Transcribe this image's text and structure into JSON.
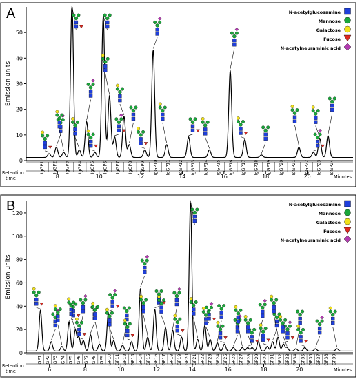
{
  "chart_data": [
    {
      "type": "line",
      "panel": "A",
      "ylabel": "Emission units",
      "xlabel": "Minutes",
      "retention_label": [
        "Retention",
        "time"
      ],
      "ylim": [
        0,
        60
      ],
      "xlim": [
        6.5,
        22.2
      ],
      "yticks": [
        0,
        10,
        20,
        30,
        40,
        50
      ],
      "xticks": [
        8,
        10,
        12,
        14,
        16,
        18,
        20
      ],
      "legend": [
        "N-acetylglucosamine",
        "Mannose",
        "Galactose",
        "Fucose",
        "N-acetylneuraminic acid"
      ],
      "legend_position": "top-right",
      "colors": {
        "N-acetylglucosamine": "#1f3fdc",
        "Mannose": "#1aa63a",
        "Galactose": "#f2e21a",
        "Fucose": "#e0281f",
        "N-acetylneuraminic acid": "#b33bb0"
      },
      "peak_labels": [
        "IgGP1",
        "IgGP2",
        "IgGP3",
        "IgGP4",
        "IgGP5",
        "IgGP6",
        "IgGP7",
        "IgGP8",
        "IgGP9",
        "IgGP10",
        "IgGP11",
        "IgGP12",
        "IgGP13",
        "IgGP14",
        "IgGP15",
        "IgGP16",
        "IgGP17",
        "IgGP18",
        "IgGP19",
        "IgGP20",
        "IgGP21",
        "IgGP22",
        "IgGP23",
        "IgGP24"
      ],
      "peaks": [
        {
          "x": 7.6,
          "y": 1.5
        },
        {
          "x": 7.95,
          "y": 4
        },
        {
          "x": 8.3,
          "y": 2
        },
        {
          "x": 8.7,
          "y": 60
        },
        {
          "x": 9.05,
          "y": 3
        },
        {
          "x": 9.4,
          "y": 14
        },
        {
          "x": 9.8,
          "y": 2
        },
        {
          "x": 10.2,
          "y": 55
        },
        {
          "x": 10.5,
          "y": 24
        },
        {
          "x": 10.75,
          "y": 8
        },
        {
          "x": 11.2,
          "y": 16
        },
        {
          "x": 11.45,
          "y": 5
        },
        {
          "x": 12.2,
          "y": 3
        },
        {
          "x": 12.6,
          "y": 42
        },
        {
          "x": 13.25,
          "y": 5
        },
        {
          "x": 14.3,
          "y": 8
        },
        {
          "x": 15.3,
          "y": 3
        },
        {
          "x": 16.3,
          "y": 34
        },
        {
          "x": 17.0,
          "y": 7
        },
        {
          "x": 17.8,
          "y": 1
        },
        {
          "x": 19.6,
          "y": 4
        },
        {
          "x": 20.3,
          "y": 2
        },
        {
          "x": 20.6,
          "y": 7.5
        },
        {
          "x": 21.0,
          "y": 8.5
        }
      ]
    },
    {
      "type": "line",
      "panel": "B",
      "ylabel": "Emission units",
      "xlabel": "Minutes",
      "retention_label": [
        "Retention",
        "time"
      ],
      "ylim": [
        0,
        130
      ],
      "xlim": [
        4.7,
        23.0
      ],
      "yticks": [
        0,
        20,
        40,
        60,
        80,
        100,
        120
      ],
      "xticks": [
        6,
        8,
        10,
        12,
        14,
        16,
        18,
        20
      ],
      "legend": [
        "N-acetylglucosamine",
        "Mannose",
        "Galactose",
        "Fucose",
        "N-acetylneuraminic acid"
      ],
      "legend_position": "top-right",
      "colors": {
        "N-acetylglucosamine": "#1f3fdc",
        "Mannose": "#1aa63a",
        "Galactose": "#f2e21a",
        "Fucose": "#e0281f",
        "N-acetylneuraminic acid": "#b33bb0"
      },
      "peak_labels": [
        "GP1",
        "GP2",
        "GP3",
        "GP4",
        "GP5",
        "GP6",
        "GP7",
        "GP8",
        "GP9",
        "GP10",
        "GP11",
        "GP12",
        "GP13",
        "GP14",
        "GP15",
        "GP16",
        "GP17",
        "GP18",
        "GP19",
        "GP20",
        "GP21",
        "GP22",
        "GP23",
        "GP24",
        "GP25",
        "GP26",
        "GP27",
        "GP28",
        "GP29",
        "GP30",
        "GP31",
        "GP32",
        "GP33",
        "GP34",
        "GP35",
        "GP36",
        "GP37",
        "GP38",
        "GP39"
      ],
      "peaks": [
        {
          "x": 5.5,
          "y": 35
        },
        {
          "x": 6.1,
          "y": 8
        },
        {
          "x": 6.7,
          "y": 4
        },
        {
          "x": 7.1,
          "y": 25
        },
        {
          "x": 7.45,
          "y": 18
        },
        {
          "x": 7.65,
          "y": 12
        },
        {
          "x": 7.9,
          "y": 9
        },
        {
          "x": 8.3,
          "y": 14
        },
        {
          "x": 8.8,
          "y": 6
        },
        {
          "x": 9.3,
          "y": 33
        },
        {
          "x": 9.6,
          "y": 9
        },
        {
          "x": 10.1,
          "y": 5
        },
        {
          "x": 10.6,
          "y": 8
        },
        {
          "x": 11.1,
          "y": 54
        },
        {
          "x": 11.5,
          "y": 12
        },
        {
          "x": 11.9,
          "y": 36
        },
        {
          "x": 12.5,
          "y": 20
        },
        {
          "x": 12.9,
          "y": 18
        },
        {
          "x": 13.4,
          "y": 12
        },
        {
          "x": 13.9,
          "y": 128
        },
        {
          "x": 14.3,
          "y": 10
        },
        {
          "x": 14.7,
          "y": 22
        },
        {
          "x": 15.0,
          "y": 10
        },
        {
          "x": 15.4,
          "y": 7
        },
        {
          "x": 15.8,
          "y": 6
        },
        {
          "x": 16.3,
          "y": 3
        },
        {
          "x": 16.8,
          "y": 3
        },
        {
          "x": 17.1,
          "y": 3
        },
        {
          "x": 17.35,
          "y": 3
        },
        {
          "x": 17.7,
          "y": 8
        },
        {
          "x": 18.2,
          "y": 4
        },
        {
          "x": 18.5,
          "y": 8
        },
        {
          "x": 18.8,
          "y": 12
        },
        {
          "x": 19.1,
          "y": 6
        },
        {
          "x": 19.3,
          "y": 3
        },
        {
          "x": 19.8,
          "y": 2
        },
        {
          "x": 20.3,
          "y": 3
        },
        {
          "x": 20.9,
          "y": 2
        },
        {
          "x": 22.1,
          "y": 2
        }
      ]
    }
  ]
}
